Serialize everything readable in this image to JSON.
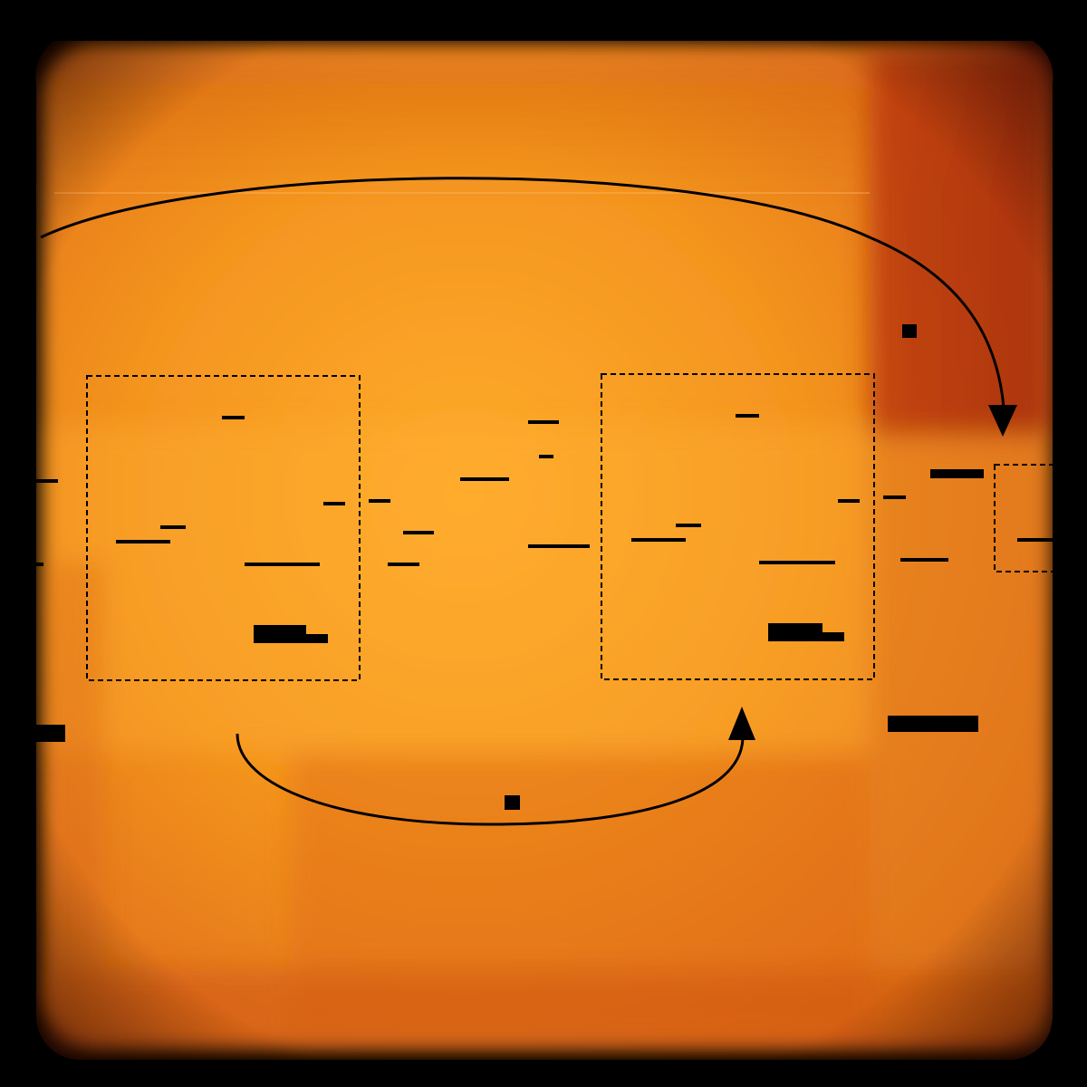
{
  "image": {
    "kind": "abstract-photograph",
    "palette": {
      "background": "#000000",
      "base": "#f0901c",
      "bright": "#ffaa2a",
      "deep": "#d8621a",
      "band_right": "#b8380e",
      "ink": "#000000"
    }
  }
}
